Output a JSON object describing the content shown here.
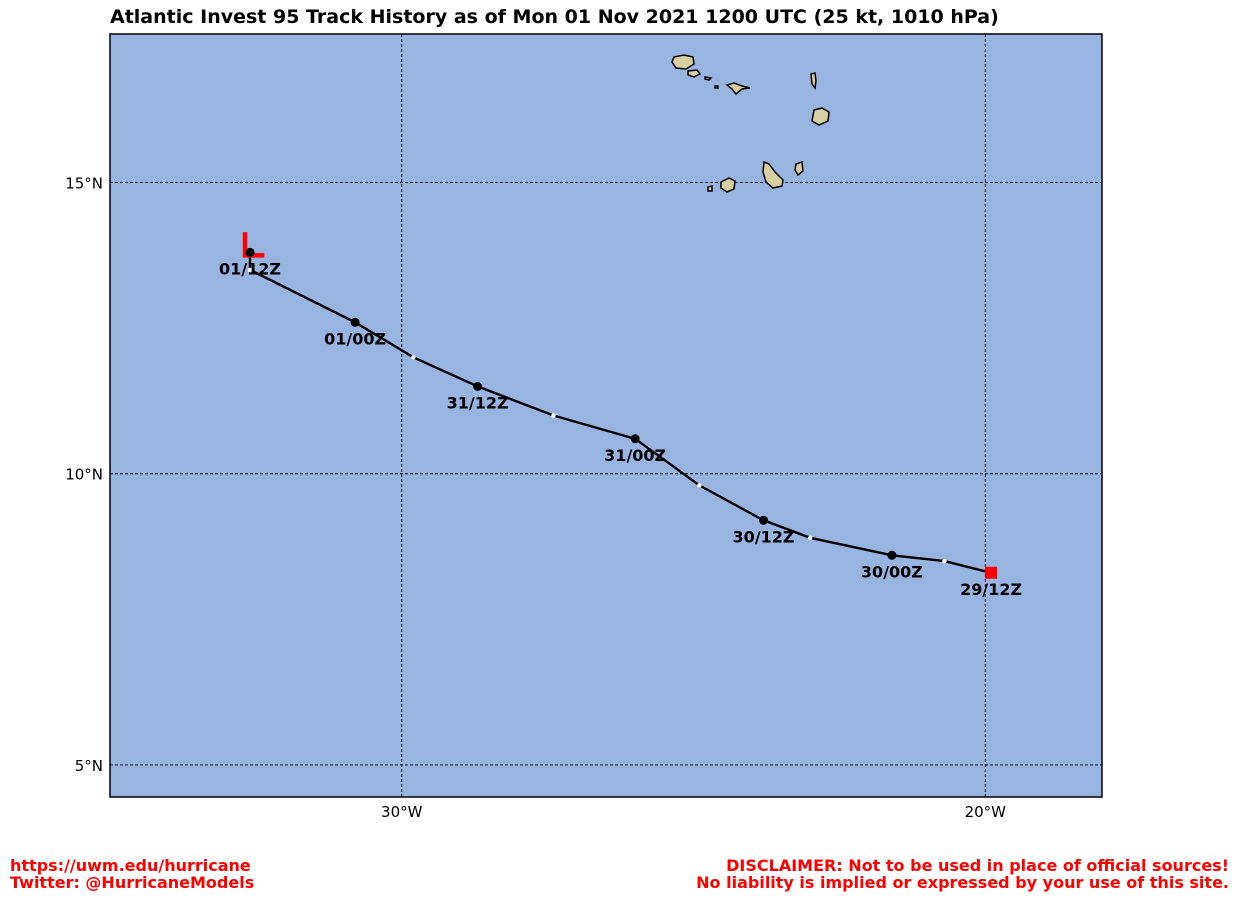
{
  "title": "Atlantic Invest 95 Track History as of Mon 01 Nov 2021 1200 UTC (25 kt, 1010 hPa)",
  "colors": {
    "ocean": "#98b5e2",
    "land": "#d9cfa5",
    "track": "#000000",
    "current_marker": "#ff0000",
    "footer_text": "#ff0000"
  },
  "map": {
    "lon_range": [
      -35,
      -18
    ],
    "lat_range": [
      4.45,
      17.55
    ],
    "lon_ticks": [
      {
        "lon": -30,
        "label": "30°W"
      },
      {
        "lon": -20,
        "label": "20°W"
      }
    ],
    "lat_ticks": [
      {
        "lat": 15,
        "label": "15°N"
      },
      {
        "lat": 10,
        "label": "10°N"
      },
      {
        "lat": 5,
        "label": "5°N"
      }
    ],
    "gridlines": true
  },
  "track": {
    "points": [
      {
        "label": "29/12Z",
        "lon": -19.9,
        "lat": 8.3,
        "marker": "square"
      },
      {
        "lon": -20.7,
        "lat": 8.5,
        "marker": "minor"
      },
      {
        "label": "30/00Z",
        "lon": -21.6,
        "lat": 8.6,
        "marker": "dot"
      },
      {
        "lon": -23.0,
        "lat": 8.9,
        "marker": "minor"
      },
      {
        "label": "30/12Z",
        "lon": -23.8,
        "lat": 9.2,
        "marker": "dot"
      },
      {
        "lon": -24.9,
        "lat": 9.8,
        "marker": "minor"
      },
      {
        "label": "31/00Z",
        "lon": -26.0,
        "lat": 10.6,
        "marker": "dot"
      },
      {
        "lon": -27.4,
        "lat": 11.0,
        "marker": "minor"
      },
      {
        "label": "31/12Z",
        "lon": -28.7,
        "lat": 11.5,
        "marker": "dot"
      },
      {
        "lon": -29.8,
        "lat": 12.0,
        "marker": "minor"
      },
      {
        "label": "01/00Z",
        "lon": -30.8,
        "lat": 12.6,
        "marker": "dot"
      },
      {
        "lon": -32.6,
        "lat": 13.5,
        "marker": "minor"
      },
      {
        "label": "01/12Z",
        "lon": -32.6,
        "lat": 13.8,
        "marker": "dot"
      }
    ],
    "current_symbol": "L"
  },
  "footer": {
    "left_line1": "https://uwm.edu/hurricane",
    "left_line2": "Twitter: @HurricaneModels",
    "right_line1": "DISCLAIMER: Not to be used in place of official sources!",
    "right_line2": "No liability is implied or expressed by your use of this site."
  }
}
